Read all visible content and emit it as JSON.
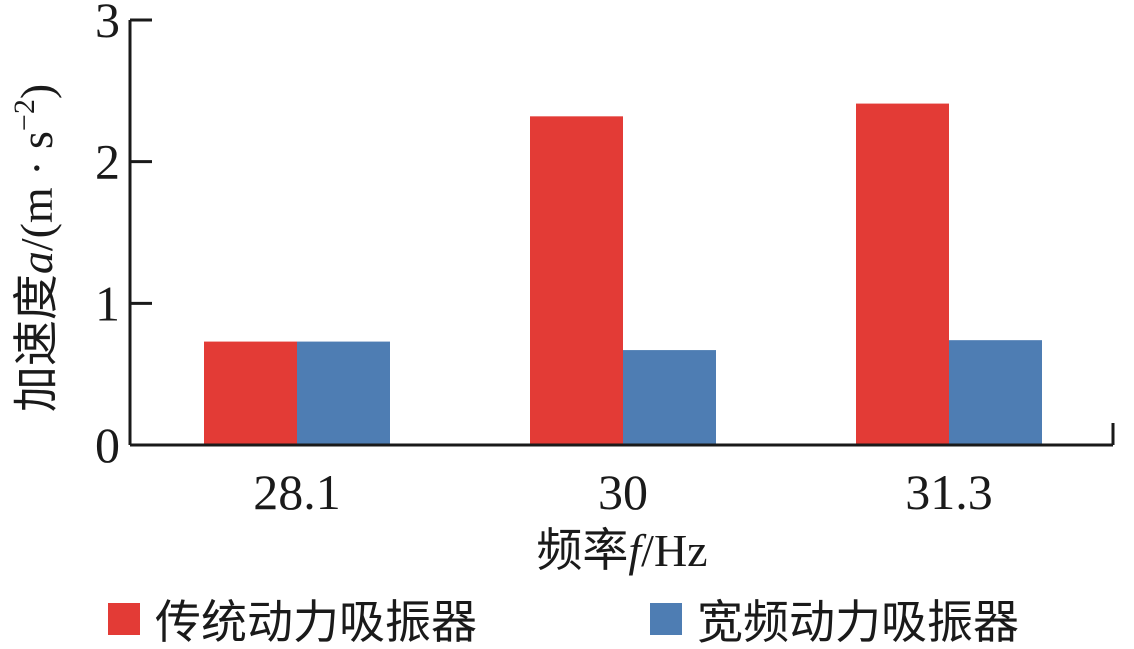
{
  "chart_data": {
    "type": "bar",
    "categories": [
      "28.1",
      "30",
      "31.3"
    ],
    "series": [
      {
        "name": "传统动力吸振器",
        "color": "#e33b36",
        "values": [
          0.73,
          2.32,
          2.41
        ]
      },
      {
        "name": "宽频动力吸振器",
        "color": "#4e7db3",
        "values": [
          0.73,
          0.67,
          0.74
        ]
      }
    ],
    "xlabel": {
      "main": "频率",
      "var": "f",
      "unit": "/Hz"
    },
    "ylabel": {
      "main": "加速度",
      "var": "a",
      "unit": "/(m · s",
      "exp": "−2",
      "close": ")"
    },
    "ylim": [
      0,
      3
    ],
    "yticks": [
      0,
      1,
      2,
      3
    ],
    "grid": false,
    "legend_position": "bottom"
  }
}
